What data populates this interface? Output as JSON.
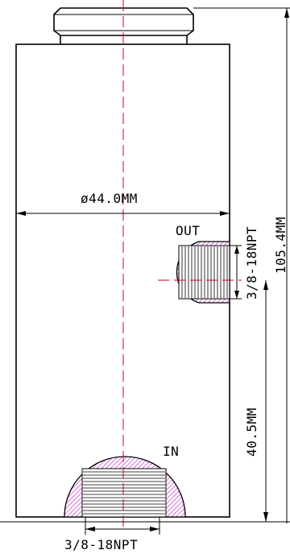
{
  "drawing": {
    "diameter_label": "ø44.0MM",
    "overall_height_label": "105.4MM",
    "port_height_label": "40.5MM",
    "outlet_label": "OUT",
    "inlet_label": "IN",
    "outlet_thread_label": "3/8-18NPT",
    "inlet_thread_label": "3/8-18NPT"
  },
  "colors": {
    "outline": "#000000",
    "centerline": "#d4001a",
    "hatch": "#cc33cc"
  }
}
